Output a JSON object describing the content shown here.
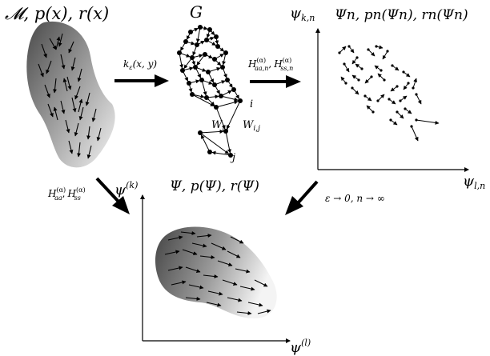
{
  "panels": {
    "manifold": {
      "label_calM": "𝓜",
      "label_rest": ", p(x), r(x)"
    },
    "graph": {
      "title": "G",
      "node_i": "i",
      "node_j": "j",
      "weight_ji": "W",
      "weight_ji_sub": "j,i",
      "weight_ij": "W",
      "weight_ij_sub": "i,j"
    },
    "embedding_n": {
      "title": "Ψn, pn(Ψn), rn(Ψn)",
      "y_axis": "ψk,n",
      "x_axis": "ψl,n"
    },
    "embedding": {
      "title": "Ψ, p(Ψ), r(Ψ)",
      "y_axis_base": "ψ",
      "y_axis_sup": "(k)",
      "x_axis_base": "ψ",
      "x_axis_sup": "(l)"
    }
  },
  "arrows": {
    "kernel": {
      "base": "k",
      "sub": "ε",
      "rest": "(x, y)"
    },
    "operators_n": {
      "h1": "H",
      "h1_sup": "(α)",
      "h1_sub": "aa,n",
      "sep": ",",
      "h2": "H",
      "h2_sup": "(α)",
      "h2_sub": "ss,n"
    },
    "operators": {
      "h1": "H",
      "h1_sup": "(α)",
      "h1_sub": "aa",
      "sep": ",",
      "h2": "H",
      "h2_sup": "(α)",
      "h2_sub": "ss"
    },
    "limit": {
      "text": "ε → 0, n → ∞"
    }
  },
  "colors": {
    "ink": "#000000",
    "blob_dark": "#4a4a4a",
    "blob_light": "#f2f2f2"
  }
}
